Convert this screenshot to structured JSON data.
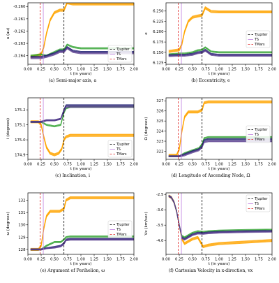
{
  "figure": {
    "panel_labels": [
      "(a)",
      "(b)",
      "(c)",
      "(d)",
      "(e)",
      "(f)"
    ]
  },
  "colors": {
    "orange": "#ffa500",
    "green": "#2ca02c",
    "navy": "#1a1a6e",
    "purple": "#5b3f8f",
    "jupiter_line": "#000000",
    "sun_line": "#c080e0",
    "mars_line": "#e02020"
  },
  "chart_data": [
    {
      "panel": "(a)",
      "type": "line",
      "caption": "(a) Semi-major axis, a",
      "xlabel": "t (in years)",
      "ylabel": "a (au)",
      "xlim": [
        0,
        2.0
      ],
      "ylim": [
        -0.2647,
        -0.2597
      ],
      "xticks": [
        0.0,
        0.25,
        0.5,
        0.75,
        1.0,
        1.25,
        1.5,
        1.75,
        2.0
      ],
      "xtick_labels": [
        "0.00",
        "0.25",
        "0.50",
        "0.75",
        "1.00",
        "1.25",
        "1.50",
        "1.75",
        "2.00"
      ],
      "yticks": [
        -0.264,
        -0.263,
        -0.262,
        -0.261,
        -0.26
      ],
      "ytick_labels": [
        "-0.264",
        "-0.263",
        "-0.262",
        "-0.261",
        "-0.260"
      ],
      "legend": {
        "position": "lower-right",
        "entries": [
          "TJupiter",
          "TS",
          "TMars"
        ]
      },
      "vlines": [
        0.23,
        0.29,
        0.68
      ],
      "series": [
        {
          "color": "orange",
          "x": [
            0.05,
            0.25,
            0.3,
            0.35,
            0.42,
            0.5,
            0.6,
            0.68,
            0.74,
            0.85,
            1.0,
            1.5,
            2.0
          ],
          "y": [
            -0.2641,
            -0.2639,
            -0.2633,
            -0.2622,
            -0.2611,
            -0.2605,
            -0.2603,
            -0.2603,
            -0.2597,
            -0.2598,
            -0.2598,
            -0.2598,
            -0.2598
          ]
        },
        {
          "color": "green",
          "x": [
            0.05,
            0.25,
            0.35,
            0.5,
            0.6,
            0.68,
            0.74,
            0.85,
            1.0,
            1.5,
            2.0
          ],
          "y": [
            -0.264,
            -0.2639,
            -0.264,
            -0.2637,
            -0.2635,
            -0.2635,
            -0.2631,
            -0.2633,
            -0.2634,
            -0.2634,
            -0.2634
          ]
        },
        {
          "color": "navy",
          "x": [
            0.05,
            0.25,
            0.35,
            0.5,
            0.6,
            0.68,
            0.74,
            0.85,
            1.0,
            1.5,
            2.0
          ],
          "y": [
            -0.2641,
            -0.2641,
            -0.264,
            -0.2638,
            -0.2636,
            -0.2636,
            -0.2633,
            -0.2636,
            -0.2637,
            -0.2637,
            -0.2637
          ]
        },
        {
          "color": "purple",
          "x": [
            0.05,
            0.25,
            0.35,
            0.5,
            0.6,
            0.68,
            0.74,
            0.85,
            1.0,
            1.5,
            2.0
          ],
          "y": [
            -0.2642,
            -0.2642,
            -0.2641,
            -0.2639,
            -0.2637,
            -0.2637,
            -0.2634,
            -0.2637,
            -0.2638,
            -0.2638,
            -0.2638
          ]
        }
      ]
    },
    {
      "panel": "(b)",
      "type": "line",
      "caption": "(b) Eccentricity, e",
      "xlabel": "t (in years)",
      "ylabel": "e",
      "xlim": [
        0,
        2.0
      ],
      "ylim": [
        6.121,
        6.27
      ],
      "xticks": [
        0.0,
        0.25,
        0.5,
        0.75,
        1.0,
        1.25,
        1.5,
        1.75,
        2.0
      ],
      "xtick_labels": [
        "0.00",
        "0.25",
        "0.50",
        "0.75",
        "1.00",
        "1.25",
        "1.50",
        "1.75",
        "2.00"
      ],
      "yticks": [
        6.125,
        6.15,
        6.175,
        6.2,
        6.225,
        6.25
      ],
      "ytick_labels": [
        "6.125",
        "6.150",
        "6.175",
        "6.200",
        "6.225",
        "6.250"
      ],
      "legend": {
        "position": "right",
        "entries": [
          "TJupiter",
          "TS",
          "TMars"
        ]
      },
      "vlines": [
        0.23,
        0.29,
        0.68
      ],
      "series": [
        {
          "color": "orange",
          "x": [
            0.05,
            0.25,
            0.3,
            0.35,
            0.42,
            0.5,
            0.6,
            0.68,
            0.74,
            0.85,
            1.0,
            1.5,
            2.0
          ],
          "y": [
            6.152,
            6.156,
            6.17,
            6.2,
            6.225,
            6.235,
            6.238,
            6.24,
            6.258,
            6.249,
            6.248,
            6.248,
            6.248
          ]
        },
        {
          "color": "green",
          "x": [
            0.05,
            0.25,
            0.35,
            0.5,
            0.6,
            0.68,
            0.74,
            0.85,
            1.0,
            1.5,
            2.0
          ],
          "y": [
            6.145,
            6.147,
            6.147,
            6.15,
            6.155,
            6.156,
            6.162,
            6.152,
            6.15,
            6.15,
            6.15
          ]
        },
        {
          "color": "navy",
          "x": [
            0.05,
            0.25,
            0.35,
            0.5,
            0.6,
            0.68,
            0.74,
            0.85,
            1.0,
            1.5,
            2.0
          ],
          "y": [
            6.143,
            6.144,
            6.144,
            6.146,
            6.15,
            6.151,
            6.156,
            6.146,
            6.144,
            6.144,
            6.144
          ]
        },
        {
          "color": "purple",
          "x": [
            0.05,
            0.25,
            0.35,
            0.5,
            0.6,
            0.68,
            0.74,
            0.85,
            1.0,
            1.5,
            2.0
          ],
          "y": [
            6.141,
            6.142,
            6.142,
            6.144,
            6.148,
            6.149,
            6.154,
            6.144,
            6.142,
            6.142,
            6.142
          ]
        }
      ]
    },
    {
      "panel": "(c)",
      "type": "line",
      "caption": "(c) Inclination, i",
      "xlabel": "t (in years)",
      "ylabel": "i (degrees)",
      "xlim": [
        0,
        2.0
      ],
      "ylim": [
        174.87,
        175.28
      ],
      "xticks": [
        0.0,
        0.25,
        0.5,
        0.75,
        1.0,
        1.25,
        1.5,
        1.75,
        2.0
      ],
      "xtick_labels": [
        "0.00",
        "0.25",
        "0.50",
        "0.75",
        "1.00",
        "1.25",
        "1.50",
        "1.75",
        "2.00"
      ],
      "yticks": [
        174.9,
        175.0,
        175.1,
        175.2
      ],
      "ytick_labels": [
        "174.9",
        "175.0",
        "175.1",
        "175.2"
      ],
      "legend": {
        "position": "lower-right",
        "entries": [
          "TJupiter",
          "TS",
          "TMars"
        ]
      },
      "vlines": [
        0.23,
        0.29,
        0.68
      ],
      "series": [
        {
          "color": "orange",
          "x": [
            0.05,
            0.2,
            0.25,
            0.3,
            0.35,
            0.42,
            0.5,
            0.58,
            0.64,
            0.68,
            0.72,
            0.8,
            1.0,
            1.5,
            2.0
          ],
          "y": [
            175.12,
            175.12,
            175.1,
            175.02,
            174.95,
            174.91,
            174.9,
            174.91,
            174.94,
            175.0,
            175.02,
            175.03,
            175.03,
            175.03,
            175.03
          ]
        },
        {
          "color": "green",
          "x": [
            0.05,
            0.25,
            0.35,
            0.5,
            0.62,
            0.68,
            0.72,
            0.8,
            1.0,
            1.5,
            2.0
          ],
          "y": [
            175.12,
            175.12,
            175.1,
            175.09,
            175.1,
            175.18,
            175.21,
            175.22,
            175.22,
            175.22,
            175.22
          ]
        },
        {
          "color": "navy",
          "x": [
            0.05,
            0.25,
            0.35,
            0.5,
            0.62,
            0.68,
            0.72,
            0.8,
            1.0,
            1.5,
            2.0
          ],
          "y": [
            175.12,
            175.12,
            175.13,
            175.13,
            175.14,
            175.2,
            175.23,
            175.23,
            175.23,
            175.23,
            175.23
          ]
        },
        {
          "color": "purple",
          "x": [
            0.05,
            0.25,
            0.35,
            0.5,
            0.62,
            0.68,
            0.72,
            0.8,
            1.0,
            1.5,
            2.0
          ],
          "y": [
            175.12,
            175.12,
            175.13,
            175.13,
            175.14,
            175.19,
            175.22,
            175.22,
            175.22,
            175.22,
            175.22
          ]
        }
      ]
    },
    {
      "panel": "(d)",
      "type": "line",
      "caption": "(d) Longitude of Ascending Node, Ω",
      "xlabel": "t (in years)",
      "ylabel": "Ω (degrees)",
      "xlim": [
        0,
        2.0
      ],
      "ylim": [
        321.2,
        327.3
      ],
      "xticks": [
        0.0,
        0.25,
        0.5,
        0.75,
        1.0,
        1.25,
        1.5,
        1.75,
        2.0
      ],
      "xtick_labels": [
        "0.00",
        "0.25",
        "0.50",
        "0.75",
        "1.00",
        "1.25",
        "1.50",
        "1.75",
        "2.00"
      ],
      "yticks": [
        322,
        323,
        324,
        325,
        326,
        327
      ],
      "ytick_labels": [
        "322",
        "323",
        "324",
        "325",
        "326",
        "327"
      ],
      "legend": {
        "position": "right",
        "entries": [
          "TJupiter",
          "TS",
          "TMars"
        ]
      },
      "vlines": [
        0.23,
        0.29,
        0.68
      ],
      "series": [
        {
          "color": "orange",
          "x": [
            0.05,
            0.2,
            0.25,
            0.3,
            0.35,
            0.42,
            0.5,
            0.6,
            0.68,
            0.72,
            0.8,
            1.0,
            1.5,
            2.0
          ],
          "y": [
            321.6,
            321.6,
            322.2,
            324.0,
            325.4,
            325.9,
            325.9,
            325.9,
            326.1,
            326.8,
            326.9,
            326.9,
            326.9,
            326.9
          ]
        },
        {
          "color": "green",
          "x": [
            0.05,
            0.25,
            0.35,
            0.5,
            0.62,
            0.68,
            0.72,
            0.8,
            1.0,
            1.5,
            2.0
          ],
          "y": [
            321.5,
            321.5,
            321.8,
            322.1,
            322.3,
            322.7,
            323.3,
            323.4,
            323.4,
            323.4,
            323.4
          ]
        },
        {
          "color": "navy",
          "x": [
            0.05,
            0.25,
            0.35,
            0.5,
            0.62,
            0.68,
            0.72,
            0.8,
            1.0,
            1.5,
            2.0
          ],
          "y": [
            321.5,
            321.5,
            321.7,
            322.0,
            322.2,
            322.5,
            323.1,
            323.2,
            323.2,
            323.2,
            323.2
          ]
        },
        {
          "color": "purple",
          "x": [
            0.05,
            0.25,
            0.35,
            0.5,
            0.62,
            0.68,
            0.72,
            0.8,
            1.0,
            1.5,
            2.0
          ],
          "y": [
            321.5,
            321.5,
            321.6,
            321.9,
            322.1,
            322.4,
            322.9,
            323.0,
            323.0,
            323.0,
            323.0
          ]
        }
      ]
    },
    {
      "panel": "(e)",
      "type": "line",
      "caption": "(e) Argument of Perihelion, ω",
      "xlabel": "t (in years)",
      "ylabel": "ω (degrees)",
      "xlim": [
        0,
        2.0
      ],
      "ylim": [
        127.6,
        132.6
      ],
      "xticks": [
        0.0,
        0.25,
        0.5,
        0.75,
        1.0,
        1.25,
        1.5,
        1.75,
        2.0
      ],
      "xtick_labels": [
        "0.00",
        "0.25",
        "0.50",
        "0.75",
        "1.00",
        "1.25",
        "1.50",
        "1.75",
        "2.00"
      ],
      "yticks": [
        128,
        129,
        130,
        131,
        132
      ],
      "ytick_labels": [
        "128",
        "129",
        "130",
        "131",
        "132"
      ],
      "legend": {
        "position": "right",
        "entries": [
          "TJupiter",
          "TS",
          "TMars"
        ]
      },
      "vlines": [
        0.23,
        0.29,
        0.68
      ],
      "series": [
        {
          "color": "orange",
          "x": [
            0.05,
            0.2,
            0.25,
            0.3,
            0.35,
            0.42,
            0.5,
            0.6,
            0.68,
            0.72,
            0.8,
            1.0,
            1.5,
            2.0
          ],
          "y": [
            128.0,
            128.0,
            128.3,
            129.7,
            130.7,
            131.1,
            131.1,
            131.1,
            131.3,
            132.0,
            132.2,
            132.2,
            132.2,
            132.2
          ]
        },
        {
          "color": "green",
          "x": [
            0.05,
            0.25,
            0.35,
            0.5,
            0.62,
            0.68,
            0.72,
            0.8,
            1.0,
            1.5,
            2.0
          ],
          "y": [
            128.0,
            128.0,
            128.3,
            128.6,
            128.6,
            128.8,
            129.0,
            129.05,
            129.05,
            129.05,
            129.05
          ]
        },
        {
          "color": "navy",
          "x": [
            0.05,
            0.25,
            0.35,
            0.5,
            0.62,
            0.68,
            0.72,
            0.8,
            1.0,
            1.5,
            2.0
          ],
          "y": [
            128.0,
            128.0,
            128.1,
            128.2,
            128.3,
            128.5,
            128.8,
            128.85,
            128.85,
            128.85,
            128.85
          ]
        },
        {
          "color": "purple",
          "x": [
            0.05,
            0.25,
            0.35,
            0.5,
            0.62,
            0.68,
            0.72,
            0.8,
            1.0,
            1.5,
            2.0
          ],
          "y": [
            128.0,
            128.0,
            128.1,
            128.15,
            128.25,
            128.45,
            128.75,
            128.8,
            128.8,
            128.8,
            128.8
          ]
        }
      ]
    },
    {
      "panel": "(f)",
      "type": "line",
      "caption": "(f) Cartesian Velocity in x-direction, vx",
      "xlabel": "t (in years)",
      "ylabel": "Vx (km/sec)",
      "xlim": [
        0,
        2.0
      ],
      "ylim": [
        -4.45,
        -2.45
      ],
      "xticks": [
        0.0,
        0.25,
        0.5,
        0.75,
        1.0,
        1.25,
        1.5,
        1.75,
        2.0
      ],
      "xtick_labels": [
        "0.00",
        "0.25",
        "0.50",
        "0.75",
        "1.00",
        "1.25",
        "1.50",
        "1.75",
        "2.00"
      ],
      "yticks": [
        -4.0,
        -3.5,
        -3.0,
        -2.5
      ],
      "ytick_labels": [
        "-4.0",
        "-3.5",
        "-3.0",
        "-2.5"
      ],
      "legend": {
        "position": "top-right",
        "entries": [
          "TJupiter",
          "TS",
          "TMars"
        ]
      },
      "vlines": [
        0.23,
        0.29,
        0.68
      ],
      "series": [
        {
          "color": "orange",
          "x": [
            0.05,
            0.1,
            0.15,
            0.2,
            0.25,
            0.3,
            0.35,
            0.4,
            0.5,
            0.6,
            0.7,
            0.8,
            1.0,
            1.5,
            2.0
          ],
          "y": [
            -2.55,
            -2.6,
            -2.75,
            -3.05,
            -3.5,
            -3.95,
            -4.1,
            -4.05,
            -3.95,
            -3.9,
            -4.2,
            -4.15,
            -4.1,
            -4.05,
            -4.0
          ]
        },
        {
          "color": "green",
          "x": [
            0.05,
            0.1,
            0.15,
            0.2,
            0.25,
            0.3,
            0.35,
            0.4,
            0.5,
            0.6,
            0.7,
            0.8,
            1.0,
            1.5,
            2.0
          ],
          "y": [
            -2.55,
            -2.6,
            -2.75,
            -3.05,
            -3.5,
            -3.85,
            -3.9,
            -3.85,
            -3.75,
            -3.7,
            -3.72,
            -3.7,
            -3.68,
            -3.66,
            -3.65
          ]
        },
        {
          "color": "navy",
          "x": [
            0.05,
            0.1,
            0.15,
            0.2,
            0.25,
            0.3,
            0.35,
            0.4,
            0.5,
            0.6,
            0.7,
            0.8,
            1.0,
            1.5,
            2.0
          ],
          "y": [
            -2.55,
            -2.6,
            -2.75,
            -3.05,
            -3.5,
            -3.9,
            -3.95,
            -3.9,
            -3.8,
            -3.75,
            -3.76,
            -3.74,
            -3.72,
            -3.7,
            -3.69
          ]
        },
        {
          "color": "purple",
          "x": [
            0.05,
            0.1,
            0.15,
            0.2,
            0.25,
            0.3,
            0.35,
            0.4,
            0.5,
            0.6,
            0.7,
            0.8,
            1.0,
            1.5,
            2.0
          ],
          "y": [
            -2.55,
            -2.6,
            -2.75,
            -3.05,
            -3.5,
            -3.92,
            -3.97,
            -3.92,
            -3.82,
            -3.77,
            -3.78,
            -3.76,
            -3.74,
            -3.72,
            -3.71
          ]
        }
      ]
    }
  ]
}
